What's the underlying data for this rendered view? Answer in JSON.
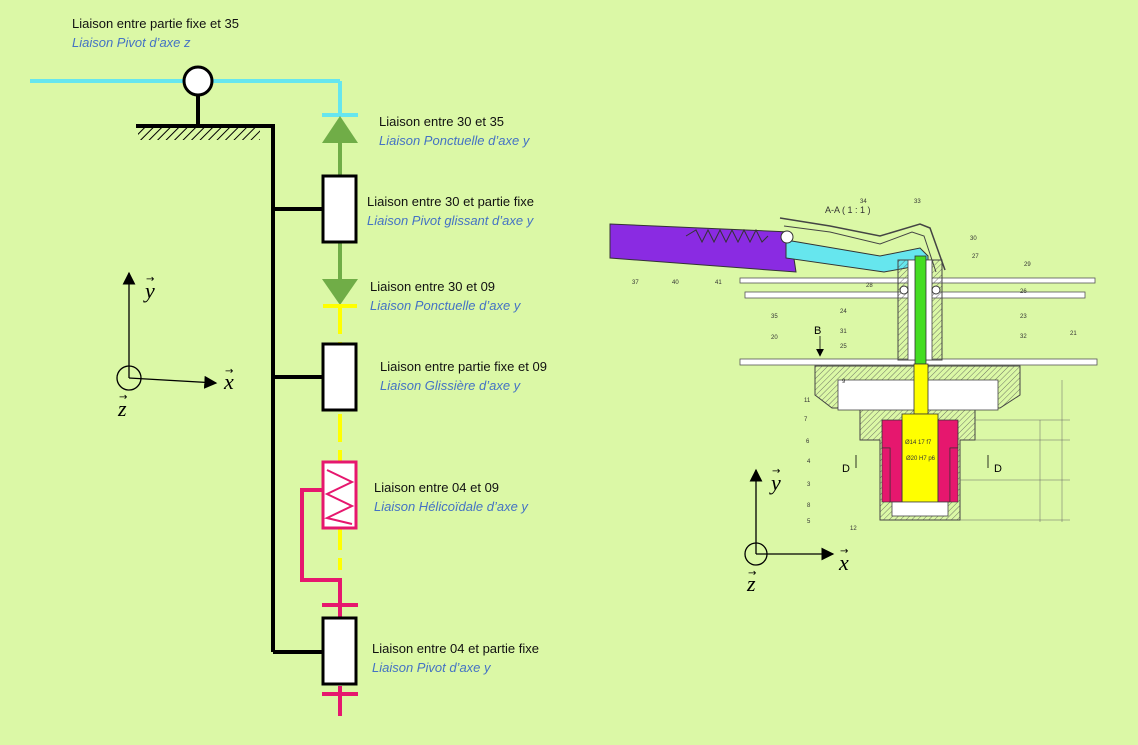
{
  "labels": {
    "pivot_z": {
      "title": "Liaison entre partie fixe et 35",
      "type": "Liaison Pivot d’axe z"
    },
    "ponct_30_35": {
      "title": "Liaison entre 30 et 35",
      "type": "Liaison Ponctuelle d’axe y"
    },
    "pivglis_30": {
      "title": "Liaison entre 30 et partie fixe",
      "type": "Liaison Pivot glissant d’axe y"
    },
    "ponct_30_09": {
      "title": "Liaison entre 30 et 09",
      "type": "Liaison Ponctuelle d’axe y"
    },
    "gliss_09": {
      "title": "Liaison entre partie fixe et 09",
      "type": "Liaison Glissière d’axe y"
    },
    "helic_04_09": {
      "title": "Liaison entre 04 et 09",
      "type": "Liaison Hélicoïdale d’axe y"
    },
    "pivot_04": {
      "title": "Liaison entre 04 et partie fixe",
      "type": "Liaison Pivot d’axe y"
    }
  },
  "axes_left": {
    "x": "x",
    "y": "y",
    "z": "z"
  },
  "axes_right": {
    "x": "x",
    "y": "y",
    "z": "z"
  },
  "drawing": {
    "title": "A-A  ( 1 : 1 )",
    "section_b": "B",
    "section_d_left": "D",
    "section_d_right": "D",
    "part_numbers": [
      "34",
      "33",
      "30",
      "27",
      "29",
      "28",
      "26",
      "37",
      "40",
      "41",
      "35",
      "24",
      "23",
      "31",
      "32",
      "21",
      "20",
      "25",
      "9",
      "11",
      "7",
      "6",
      "4",
      "3",
      "8",
      "5",
      "12"
    ],
    "dimension_texts": [
      "Ø14 17 f7",
      "Ø20 H7 p6"
    ]
  },
  "colors": {
    "background": "#dbf8a6",
    "part_35": "#66e6ee",
    "part_30": "#70ad47",
    "part_09": "#ffff00",
    "part_04": "#e6176e",
    "frame": "#000000",
    "italic_text": "#4472c4",
    "part_37": "#8a2be2"
  }
}
